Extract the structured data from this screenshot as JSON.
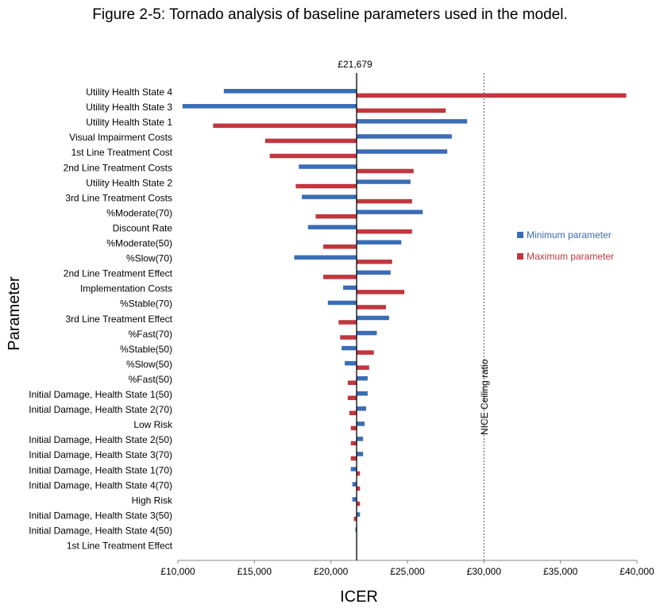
{
  "title": "Figure 2-5: Tornado analysis of baseline parameters used in the model.",
  "chart_data": {
    "type": "bar",
    "orientation": "horizontal-tornado",
    "baseline_value": 21679,
    "baseline_label": "£21,679",
    "reference_line": {
      "value": 30000,
      "label": "NICE Ceiling ratio"
    },
    "xlabel": "ICER",
    "ylabel": "Parameter",
    "xlim": [
      10000,
      40000
    ],
    "x_ticks": [
      10000,
      15000,
      20000,
      25000,
      30000,
      35000,
      40000
    ],
    "x_tick_labels": [
      "£10,000",
      "£15,000",
      "£20,000",
      "£25,000",
      "£30,000",
      "£35,000",
      "£40,000"
    ],
    "legend_position": "right",
    "categories": [
      "Utility Health State 4",
      "Utility Health State 3",
      "Utility Health State 1",
      "Visual Impairment Costs",
      "1st Line Treatment Cost",
      "2nd Line Treatment Costs",
      "Utility Health State 2",
      "3rd Line Treatment Costs",
      "%Moderate(70)",
      "Discount Rate",
      "%Moderate(50)",
      "%Slow(70)",
      "2nd Line Treatment Effect",
      "Implementation Costs",
      "%Stable(70)",
      "3rd Line Treatment Effect",
      "%Fast(70)",
      "%Stable(50)",
      "%Slow(50)",
      "%Fast(50)",
      "Initial Damage, Health State 1(50)",
      "Initial Damage, Health State 2(70)",
      "Low Risk",
      "Initial Damage, Health State 2(50)",
      "Initial Damage, Health State 3(70)",
      "Initial Damage, Health State 1(70)",
      "Initial Damage, Health State 4(70)",
      "High Risk",
      "Initial Damage, Health State 3(50)",
      "Initial Damage, Health State 4(50)",
      "1st Line Treatment Effect"
    ],
    "series": [
      {
        "name": "Minimum parameter",
        "color": "#3a6db5",
        "values": [
          13000,
          10300,
          28900,
          27900,
          27600,
          17900,
          25200,
          18100,
          26000,
          18500,
          24600,
          17600,
          23900,
          20800,
          19800,
          23800,
          23000,
          20700,
          20900,
          22400,
          22400,
          22300,
          22200,
          22100,
          22100,
          21300,
          21400,
          21400,
          21900,
          21600,
          21679
        ]
      },
      {
        "name": "Maximum parameter",
        "color": "#c0373f",
        "values": [
          39300,
          27500,
          12300,
          15700,
          16000,
          25400,
          17700,
          25300,
          19000,
          25300,
          19500,
          24000,
          19500,
          24800,
          23600,
          20500,
          20600,
          22800,
          22500,
          21100,
          21100,
          21200,
          21300,
          21300,
          21300,
          21900,
          21900,
          21900,
          21500,
          21700,
          21679
        ]
      }
    ]
  }
}
